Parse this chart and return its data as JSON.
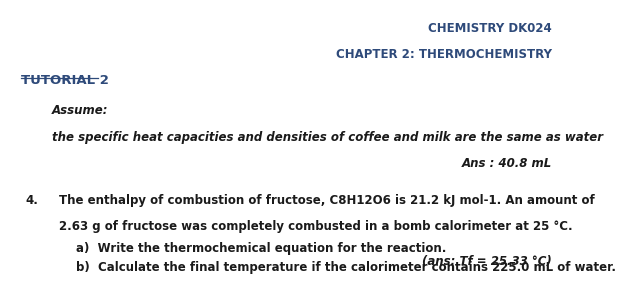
{
  "bg_color": "#ffffff",
  "header_line1": "CHEMISTRY DK024",
  "header_line2": "CHAPTER 2: THERMOCHEMISTRY",
  "header_color": "#2e4a7a",
  "header_fontsize": 8.5,
  "tutorial_label": "TUTORIAL 2",
  "tutorial_color": "#2e4a7a",
  "tutorial_fontsize": 9.5,
  "assume_label": "Assume:",
  "italic_line": "the specific heat capacities and densities of coffee and milk are the same as water",
  "ans_line": "Ans : 40.8 mL",
  "q4_number": "4.",
  "q4_text_line1": "The enthalpy of combustion of fructose, C8H12O6 is 21.2 kJ mol-1. An amount of",
  "q4_text_line2": "2.63 g of fructose was completely combusted in a bomb calorimeter at 25 °C.",
  "q4_a": "a)  Write the thermochemical equation for the reaction.",
  "q4_b": "b)  Calculate the final temperature if the calorimeter contains 225.0 mL of water.",
  "q4_ans_b": "(ans: Tf = 25.33 °C)",
  "body_fontsize": 8.5,
  "body_color": "#1a1a1a"
}
